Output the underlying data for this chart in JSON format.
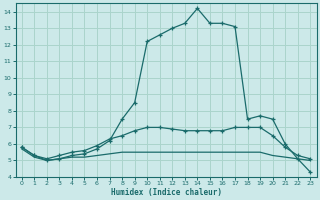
{
  "xlabel": "Humidex (Indice chaleur)",
  "xlim": [
    -0.5,
    23.5
  ],
  "ylim": [
    4,
    14.5
  ],
  "yticks": [
    4,
    5,
    6,
    7,
    8,
    9,
    10,
    11,
    12,
    13,
    14
  ],
  "xticks": [
    0,
    1,
    2,
    3,
    4,
    5,
    6,
    7,
    8,
    9,
    10,
    11,
    12,
    13,
    14,
    15,
    16,
    17,
    18,
    19,
    20,
    21,
    22,
    23
  ],
  "background_color": "#cce9e9",
  "grid_color": "#aad4cc",
  "line_color": "#1a6b6b",
  "line1_y": [
    5.8,
    5.3,
    5.0,
    5.1,
    5.3,
    5.4,
    5.7,
    6.2,
    7.5,
    8.5,
    12.2,
    12.6,
    13.0,
    13.3,
    14.2,
    13.3,
    13.3,
    13.1,
    7.5,
    7.7,
    7.5,
    6.0,
    5.1,
    4.3
  ],
  "line2_y": [
    5.8,
    5.3,
    5.1,
    5.3,
    5.5,
    5.6,
    5.9,
    6.3,
    6.5,
    6.8,
    7.0,
    7.0,
    6.9,
    6.8,
    6.8,
    6.8,
    6.8,
    7.0,
    7.0,
    7.0,
    6.5,
    5.8,
    5.3,
    5.1
  ],
  "line3_y": [
    5.7,
    5.2,
    5.0,
    5.1,
    5.2,
    5.2,
    5.3,
    5.4,
    5.5,
    5.5,
    5.5,
    5.5,
    5.5,
    5.5,
    5.5,
    5.5,
    5.5,
    5.5,
    5.5,
    5.5,
    5.3,
    5.2,
    5.1,
    5.0
  ],
  "line1_markers": [
    0,
    1,
    2,
    3,
    4,
    5,
    6,
    7,
    8,
    9,
    10,
    11,
    12,
    13,
    14,
    15,
    16,
    17,
    18,
    19,
    20,
    21,
    22,
    23
  ],
  "line2_markers": [
    0,
    1,
    2,
    3,
    4,
    5,
    6,
    7,
    8,
    9,
    10,
    11,
    12,
    13,
    14,
    15,
    16,
    17,
    18,
    19,
    20,
    21,
    22,
    23
  ]
}
